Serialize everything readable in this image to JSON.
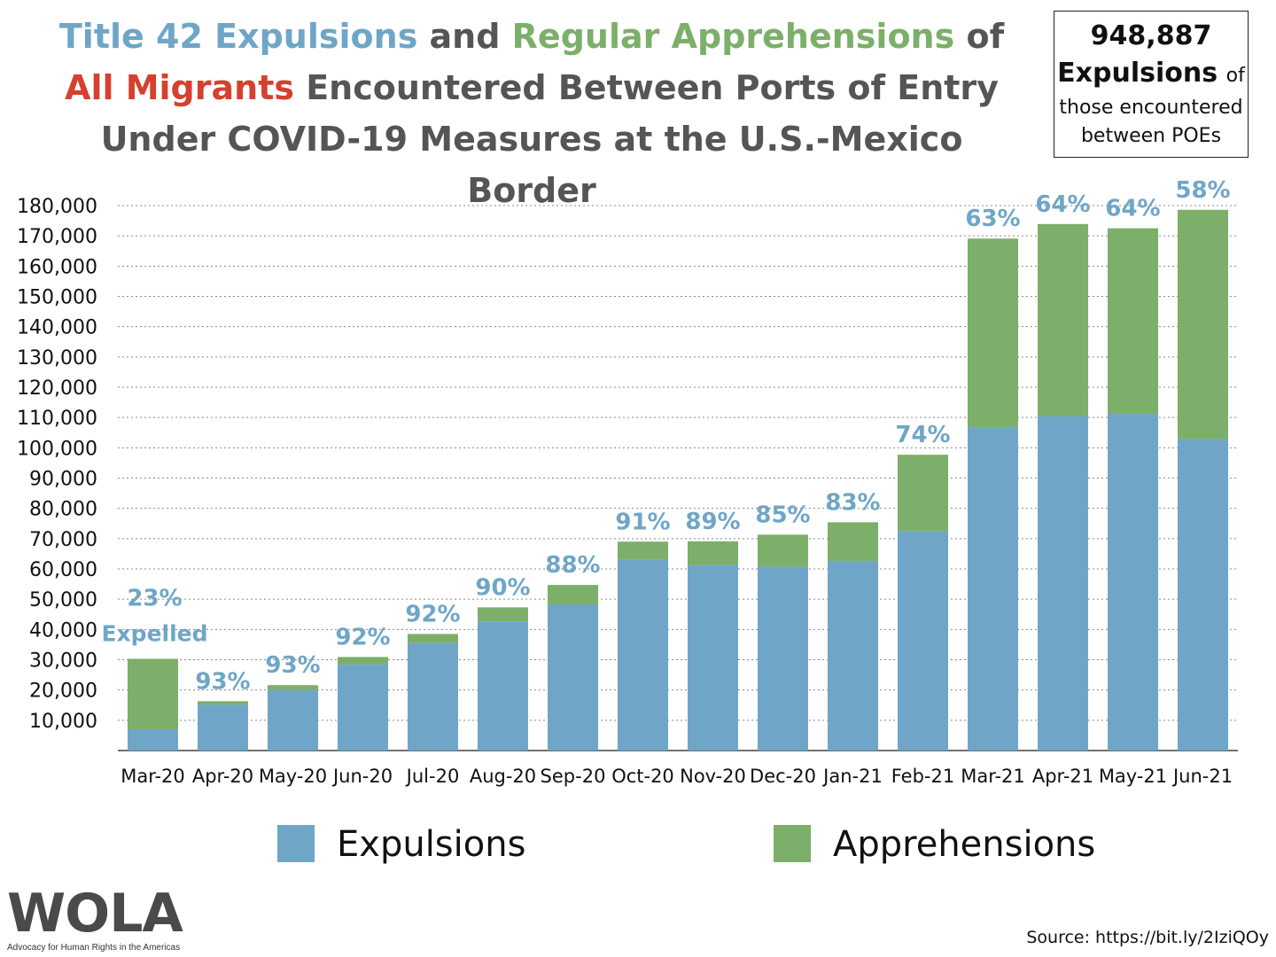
{
  "title": {
    "part1": "Title 42 Expulsions",
    "part2": " and ",
    "part3": "Regular Apprehensions",
    "part4": " of ",
    "part5": "All Migrants",
    "part6": " Encountered Between Ports of Entry Under COVID-19 Measures at the U.S.-Mexico Border"
  },
  "callout": {
    "number": "948,887",
    "bold_word": "Expulsions",
    "of": "of",
    "line3": "those encountered",
    "line4": "between POEs"
  },
  "colors": {
    "expulsions": "#6fa6c7",
    "apprehensions": "#7caf6a",
    "title_red": "#d6402e",
    "title_gray": "#555555"
  },
  "chart_data": {
    "type": "bar",
    "stacked": true,
    "categories": [
      "Mar-20",
      "Apr-20",
      "May-20",
      "Jun-20",
      "Jul-20",
      "Aug-20",
      "Sep-20",
      "Oct-20",
      "Nov-20",
      "Dec-20",
      "Jan-21",
      "Feb-21",
      "Mar-21",
      "Apr-21",
      "May-21",
      "Jun-21"
    ],
    "series": [
      {
        "name": "Expulsions",
        "values": [
          7000,
          15200,
          20000,
          28500,
          35500,
          42700,
          48300,
          63100,
          61200,
          60700,
          62600,
          72400,
          106800,
          110500,
          111200,
          102900
        ]
      },
      {
        "name": "Apprehensions",
        "values": [
          23300,
          1100,
          1600,
          2400,
          3000,
          4600,
          6400,
          5900,
          7900,
          10600,
          12800,
          25300,
          62300,
          63400,
          61300,
          75700
        ]
      }
    ],
    "bar_labels": [
      "23%",
      "93%",
      "93%",
      "92%",
      "92%",
      "90%",
      "88%",
      "91%",
      "89%",
      "85%",
      "83%",
      "74%",
      "63%",
      "64%",
      "64%",
      "58%"
    ],
    "first_bar_extra_label": "Expelled",
    "y_ticks": [
      "10,000",
      "20,000",
      "30,000",
      "40,000",
      "50,000",
      "60,000",
      "70,000",
      "80,000",
      "90,000",
      "100,000",
      "110,000",
      "120,000",
      "130,000",
      "140,000",
      "150,000",
      "160,000",
      "170,000",
      "180,000"
    ],
    "ylim": [
      0,
      180000
    ],
    "grid": "dotted horizontal",
    "legend_position": "bottom"
  },
  "legend": {
    "expulsions": "Expulsions",
    "apprehensions": "Apprehensions"
  },
  "logo": {
    "text": "WOLA",
    "tagline": "Advocacy for Human Rights in the Americas"
  },
  "source": "Source: https://bit.ly/2IziQOy"
}
